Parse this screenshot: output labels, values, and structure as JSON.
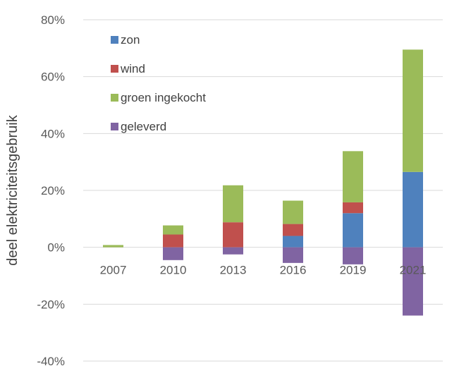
{
  "chart_data": {
    "type": "bar",
    "stacked": true,
    "categories": [
      "2007",
      "2010",
      "2013",
      "2016",
      "2019",
      "2021"
    ],
    "ylabel": "deel elektriciteitsgebruik",
    "ylim": [
      -40,
      80
    ],
    "y_ticks": [
      -40,
      -20,
      0,
      20,
      40,
      60,
      80
    ],
    "y_tick_labels": [
      "-40%",
      "-20%",
      "0%",
      "20%",
      "40%",
      "60%",
      "80%"
    ],
    "grid": true,
    "legend_position": "top-left",
    "series": [
      {
        "name": "zon",
        "color": "#4f81bd",
        "values": [
          0,
          0,
          0,
          4,
          12,
          26.5
        ]
      },
      {
        "name": "wind",
        "color": "#c0504d",
        "values": [
          0,
          4.5,
          8.8,
          4.2,
          3.8,
          0
        ]
      },
      {
        "name": "groen ingekocht",
        "color": "#9bbb59",
        "values": [
          0.8,
          3.2,
          13,
          8.2,
          18,
          43
        ]
      },
      {
        "name": "geleverd",
        "color": "#8064a2",
        "values": [
          0,
          -4.5,
          -2.5,
          -5.5,
          -6,
          -24
        ]
      }
    ]
  }
}
